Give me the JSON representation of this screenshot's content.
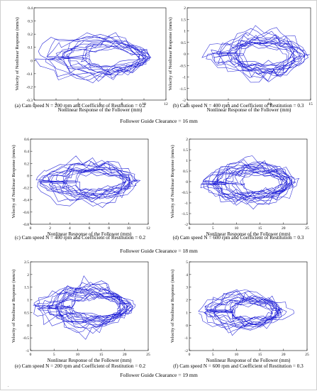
{
  "figure": {
    "groups": [
      {
        "label": "Follower Guide Clearance = 16 mm",
        "after_row": 0
      },
      {
        "label": "Follower Guide Clearance = 18 mm",
        "after_row": 1
      },
      {
        "label": "Follower Guide Clearance = 19 mm",
        "after_row": 2
      }
    ],
    "footnote": "."
  },
  "chart_data": [
    {
      "type": "line",
      "caption": "(a) Cam speed N = 200 rpm and Coefficient of Restitution = 0.2",
      "xlabel": "Nonlinear Response of the Follower (mm)",
      "ylabel": "Velocity of Nonlinear Response (mm/s)",
      "xlim": [
        0,
        12
      ],
      "ylim": [
        -0.3,
        0.4
      ],
      "xticks": [
        0,
        2,
        4,
        6,
        8,
        10,
        12
      ],
      "yticks": [
        -0.3,
        -0.2,
        -0.1,
        0,
        0.1,
        0.2,
        0.3,
        0.4
      ],
      "trajectory": {
        "x0": 0.2,
        "x1": 11.0,
        "ymax": 0.33,
        "ymin": -0.28,
        "tip": 10.3,
        "loops": 14,
        "seed": 11
      },
      "series_color": "#1f1fd6"
    },
    {
      "type": "line",
      "caption": "(b) Cam speed N = 400 rpm and Coefficient of Restitution = 0.3",
      "xlabel": "Nonlinear Response of the Follower (mm)",
      "ylabel": "Velocity of Nonlinear Response (mm/s)",
      "xlim": [
        0,
        15
      ],
      "ylim": [
        -2,
        2
      ],
      "xticks": [
        0,
        5,
        10,
        15
      ],
      "yticks": [
        -2,
        -1.5,
        -1,
        -0.5,
        0,
        0.5,
        1,
        1.5,
        2
      ],
      "trajectory": {
        "x0": 1.5,
        "x1": 15.0,
        "ymax": 1.8,
        "ymin": -1.9,
        "tip": 13.5,
        "loops": 16,
        "seed": 23
      },
      "series_color": "#1f1fd6"
    },
    {
      "type": "line",
      "caption": "(c) Cam speed N = 400 rpm and Coefficient of Restitution = 0.2",
      "xlabel": "Nonlinear Response of the Follower (mm)",
      "ylabel": "Velocity of Nonlinear Response (mm/s)",
      "xlim": [
        0,
        12
      ],
      "ylim": [
        -0.8,
        0.6
      ],
      "xticks": [
        0,
        2,
        4,
        6,
        8,
        10,
        12
      ],
      "yticks": [
        -0.8,
        -0.6,
        -0.4,
        -0.2,
        0,
        0.2,
        0.4,
        0.6
      ],
      "trajectory": {
        "x0": 0.3,
        "x1": 11.3,
        "ymax": 0.52,
        "ymin": -0.72,
        "tip": 10.6,
        "loops": 15,
        "seed": 37
      },
      "series_color": "#1f1fd6"
    },
    {
      "type": "line",
      "caption": "(d) Cam speed N = 600 rpm and Coefficient of Restitution = 0.3",
      "xlabel": "Nonlinear Response of the Follower (mm)",
      "ylabel": "Velocity of Nonlinear Response (mm/s)",
      "xlim": [
        0,
        25
      ],
      "ylim": [
        -2,
        2
      ],
      "xticks": [
        0,
        5,
        10,
        15,
        20,
        25
      ],
      "yticks": [
        -2,
        -1.5,
        -1,
        -0.5,
        0,
        0.5,
        1,
        1.5,
        2
      ],
      "trajectory": {
        "x0": 2.0,
        "x1": 24.0,
        "ymax": 1.8,
        "ymin": -1.9,
        "tip": 22.0,
        "loops": 18,
        "seed": 41
      },
      "series_color": "#1f1fd6"
    },
    {
      "type": "line",
      "caption": "(e) Cam speed N = 200 rpm and Coefficient of Restitution = 0.2",
      "xlabel": "Nonlinear Response of the Follower (mm)",
      "ylabel": "Velocity of Nonlinear Response (mm/s)",
      "xlim": [
        0,
        25
      ],
      "ylim": [
        -1,
        2.5
      ],
      "xticks": [
        0,
        5,
        10,
        15,
        20,
        25
      ],
      "yticks": [
        -1,
        -0.5,
        0,
        0.5,
        1,
        1.5,
        2,
        2.5
      ],
      "trajectory": {
        "x0": 0.5,
        "x1": 23.0,
        "ymax": 2.4,
        "ymin": -0.95,
        "tip": 21.0,
        "loops": 18,
        "seed": 53
      },
      "series_color": "#1f1fd6"
    },
    {
      "type": "line",
      "caption": "(f) Cam speed N = 600 rpm and Coefficient of Restitution = 0.3",
      "xlabel": "Nonlinear Response of the Follower (mm)",
      "ylabel": "Velocity of Nonlinear Response (mm/s)",
      "xlim": [
        0,
        25
      ],
      "ylim": [
        -2,
        5
      ],
      "xticks": [
        0,
        5,
        10,
        15,
        20,
        25
      ],
      "yticks": [
        -2,
        -1,
        0,
        1,
        2,
        3,
        4,
        5
      ],
      "trajectory": {
        "x0": 2.0,
        "x1": 22.5,
        "ymax": 4.0,
        "ymin": -1.8,
        "tip": 19.0,
        "loops": 16,
        "seed": 67
      },
      "series_color": "#1f1fd6"
    }
  ]
}
